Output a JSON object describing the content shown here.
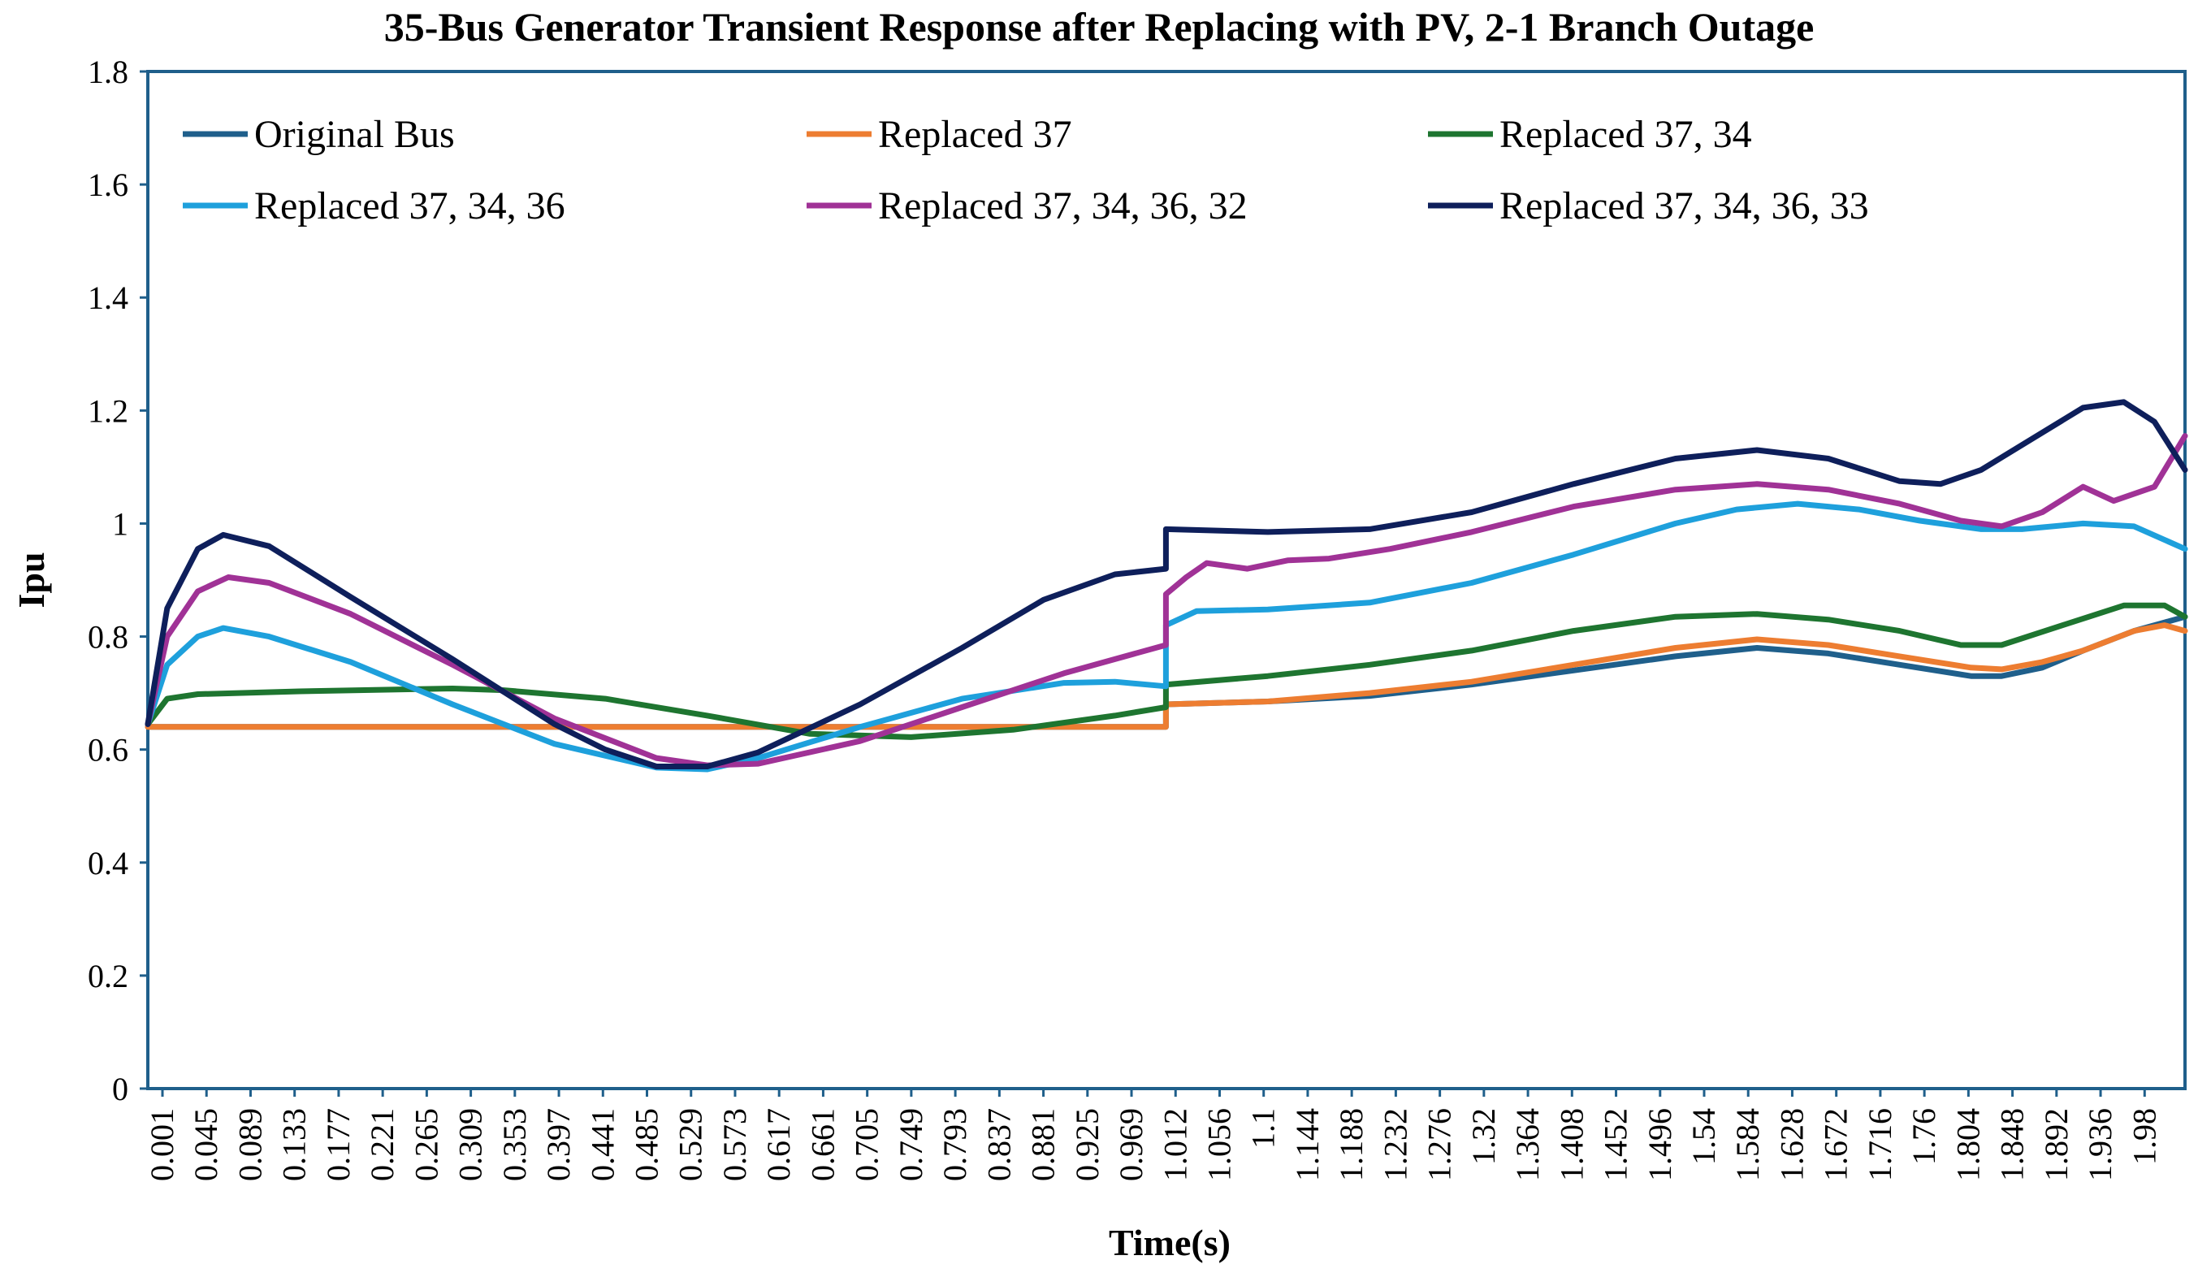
{
  "chart_data": {
    "type": "line",
    "title": "35-Bus Generator Transient Response after Replacing with PV, 2-1 Branch Outage",
    "xlabel": "Time(s)",
    "ylabel": "Ipu",
    "xlim": [
      0.001,
      2.0
    ],
    "ylim": [
      0,
      1.8
    ],
    "yticks": [
      "0",
      "0.2",
      "0.4",
      "0.6",
      "0.8",
      "1",
      "1.2",
      "1.4",
      "1.6",
      "1.8"
    ],
    "xticks": [
      "0.001",
      "0.045",
      "0.089",
      "0.133",
      "0.177",
      "0.221",
      "0.265",
      "0.309",
      "0.353",
      "0.397",
      "0.441",
      "0.485",
      "0.529",
      "0.573",
      "0.617",
      "0.661",
      "0.705",
      "0.749",
      "0.793",
      "0.837",
      "0.881",
      "0.925",
      "0.969",
      "1.012",
      "1.056",
      "1.1",
      "1.144",
      "1.188",
      "1.232",
      "1.276",
      "1.32",
      "1.364",
      "1.408",
      "1.452",
      "1.496",
      "1.54",
      "1.584",
      "1.628",
      "1.672",
      "1.716",
      "1.76",
      "1.804",
      "1.848",
      "1.892",
      "1.936",
      "1.98"
    ],
    "legend_position": "top",
    "series": [
      {
        "name": "Original Bus",
        "color": "#1f5f8b",
        "points": [
          [
            0.001,
            0.64
          ],
          [
            1.0,
            0.64
          ],
          [
            1.0,
            0.68
          ],
          [
            1.1,
            0.685
          ],
          [
            1.2,
            0.695
          ],
          [
            1.3,
            0.715
          ],
          [
            1.4,
            0.74
          ],
          [
            1.5,
            0.765
          ],
          [
            1.58,
            0.78
          ],
          [
            1.65,
            0.77
          ],
          [
            1.72,
            0.75
          ],
          [
            1.79,
            0.73
          ],
          [
            1.82,
            0.73
          ],
          [
            1.86,
            0.745
          ],
          [
            1.9,
            0.775
          ],
          [
            1.95,
            0.81
          ],
          [
            2.0,
            0.835
          ]
        ]
      },
      {
        "name": "Replaced 37",
        "color": "#ed7d31",
        "points": [
          [
            0.001,
            0.64
          ],
          [
            1.0,
            0.64
          ],
          [
            1.0,
            0.68
          ],
          [
            1.1,
            0.685
          ],
          [
            1.2,
            0.7
          ],
          [
            1.3,
            0.72
          ],
          [
            1.4,
            0.75
          ],
          [
            1.5,
            0.78
          ],
          [
            1.58,
            0.795
          ],
          [
            1.65,
            0.785
          ],
          [
            1.72,
            0.765
          ],
          [
            1.79,
            0.745
          ],
          [
            1.82,
            0.742
          ],
          [
            1.86,
            0.755
          ],
          [
            1.9,
            0.775
          ],
          [
            1.95,
            0.81
          ],
          [
            1.98,
            0.82
          ],
          [
            2.0,
            0.81
          ]
        ]
      },
      {
        "name": "Replaced 37, 34",
        "color": "#1e7530",
        "points": [
          [
            0.001,
            0.645
          ],
          [
            0.02,
            0.69
          ],
          [
            0.05,
            0.698
          ],
          [
            0.15,
            0.703
          ],
          [
            0.3,
            0.708
          ],
          [
            0.35,
            0.705
          ],
          [
            0.45,
            0.69
          ],
          [
            0.55,
            0.66
          ],
          [
            0.65,
            0.628
          ],
          [
            0.75,
            0.622
          ],
          [
            0.85,
            0.635
          ],
          [
            0.95,
            0.66
          ],
          [
            1.0,
            0.675
          ],
          [
            1.0,
            0.715
          ],
          [
            1.1,
            0.73
          ],
          [
            1.2,
            0.75
          ],
          [
            1.3,
            0.775
          ],
          [
            1.4,
            0.81
          ],
          [
            1.5,
            0.835
          ],
          [
            1.58,
            0.84
          ],
          [
            1.65,
            0.83
          ],
          [
            1.72,
            0.81
          ],
          [
            1.78,
            0.785
          ],
          [
            1.82,
            0.785
          ],
          [
            1.88,
            0.82
          ],
          [
            1.94,
            0.855
          ],
          [
            1.98,
            0.855
          ],
          [
            2.0,
            0.835
          ]
        ]
      },
      {
        "name": "Replaced 37, 34, 36",
        "color": "#1ea0dc",
        "points": [
          [
            0.001,
            0.645
          ],
          [
            0.02,
            0.75
          ],
          [
            0.05,
            0.8
          ],
          [
            0.075,
            0.815
          ],
          [
            0.12,
            0.8
          ],
          [
            0.2,
            0.755
          ],
          [
            0.3,
            0.68
          ],
          [
            0.4,
            0.61
          ],
          [
            0.5,
            0.568
          ],
          [
            0.55,
            0.565
          ],
          [
            0.6,
            0.585
          ],
          [
            0.7,
            0.64
          ],
          [
            0.8,
            0.69
          ],
          [
            0.9,
            0.718
          ],
          [
            0.95,
            0.72
          ],
          [
            1.0,
            0.712
          ],
          [
            1.0,
            0.82
          ],
          [
            1.03,
            0.845
          ],
          [
            1.1,
            0.848
          ],
          [
            1.2,
            0.86
          ],
          [
            1.3,
            0.895
          ],
          [
            1.4,
            0.945
          ],
          [
            1.5,
            1.0
          ],
          [
            1.56,
            1.025
          ],
          [
            1.62,
            1.035
          ],
          [
            1.68,
            1.025
          ],
          [
            1.74,
            1.005
          ],
          [
            1.8,
            0.99
          ],
          [
            1.84,
            0.99
          ],
          [
            1.9,
            1.0
          ],
          [
            1.95,
            0.995
          ],
          [
            2.0,
            0.955
          ]
        ]
      },
      {
        "name": "Replaced 37, 34, 36, 32",
        "color": "#a03296",
        "points": [
          [
            0.001,
            0.645
          ],
          [
            0.02,
            0.8
          ],
          [
            0.05,
            0.88
          ],
          [
            0.08,
            0.905
          ],
          [
            0.12,
            0.895
          ],
          [
            0.2,
            0.84
          ],
          [
            0.3,
            0.75
          ],
          [
            0.4,
            0.655
          ],
          [
            0.5,
            0.585
          ],
          [
            0.55,
            0.572
          ],
          [
            0.6,
            0.575
          ],
          [
            0.7,
            0.615
          ],
          [
            0.8,
            0.675
          ],
          [
            0.9,
            0.735
          ],
          [
            0.97,
            0.77
          ],
          [
            1.0,
            0.785
          ],
          [
            1.0,
            0.875
          ],
          [
            1.02,
            0.905
          ],
          [
            1.04,
            0.93
          ],
          [
            1.08,
            0.92
          ],
          [
            1.12,
            0.935
          ],
          [
            1.16,
            0.938
          ],
          [
            1.22,
            0.955
          ],
          [
            1.3,
            0.985
          ],
          [
            1.4,
            1.03
          ],
          [
            1.5,
            1.06
          ],
          [
            1.58,
            1.07
          ],
          [
            1.65,
            1.06
          ],
          [
            1.72,
            1.035
          ],
          [
            1.78,
            1.005
          ],
          [
            1.82,
            0.995
          ],
          [
            1.86,
            1.02
          ],
          [
            1.9,
            1.065
          ],
          [
            1.93,
            1.04
          ],
          [
            1.97,
            1.065
          ],
          [
            2.0,
            1.155
          ]
        ]
      },
      {
        "name": "Replaced 37, 34, 36, 33",
        "color": "#0e1f5b",
        "points": [
          [
            0.001,
            0.645
          ],
          [
            0.02,
            0.85
          ],
          [
            0.05,
            0.955
          ],
          [
            0.075,
            0.98
          ],
          [
            0.12,
            0.96
          ],
          [
            0.2,
            0.87
          ],
          [
            0.3,
            0.76
          ],
          [
            0.4,
            0.645
          ],
          [
            0.45,
            0.6
          ],
          [
            0.5,
            0.57
          ],
          [
            0.55,
            0.57
          ],
          [
            0.6,
            0.595
          ],
          [
            0.7,
            0.68
          ],
          [
            0.8,
            0.78
          ],
          [
            0.88,
            0.865
          ],
          [
            0.95,
            0.91
          ],
          [
            1.0,
            0.92
          ],
          [
            1.0,
            0.99
          ],
          [
            1.1,
            0.985
          ],
          [
            1.2,
            0.99
          ],
          [
            1.3,
            1.02
          ],
          [
            1.4,
            1.07
          ],
          [
            1.5,
            1.115
          ],
          [
            1.58,
            1.13
          ],
          [
            1.65,
            1.115
          ],
          [
            1.72,
            1.075
          ],
          [
            1.76,
            1.07
          ],
          [
            1.8,
            1.095
          ],
          [
            1.85,
            1.15
          ],
          [
            1.9,
            1.205
          ],
          [
            1.94,
            1.215
          ],
          [
            1.97,
            1.18
          ],
          [
            2.0,
            1.095
          ]
        ]
      }
    ]
  }
}
